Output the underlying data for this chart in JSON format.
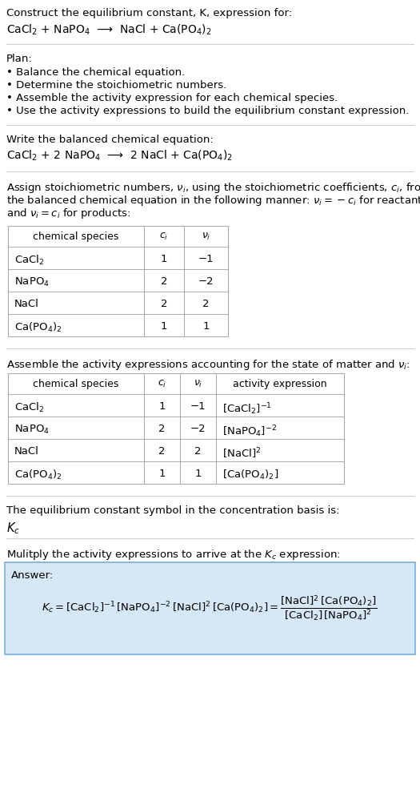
{
  "title_line1": "Construct the equilibrium constant, K, expression for:",
  "title_line2": "CaCl$_2$ + NaPO$_4$  ⟶  NaCl + Ca(PO$_4$)$_2$",
  "plan_header": "Plan:",
  "plan_bullets": [
    "• Balance the chemical equation.",
    "• Determine the stoichiometric numbers.",
    "• Assemble the activity expression for each chemical species.",
    "• Use the activity expressions to build the equilibrium constant expression."
  ],
  "balanced_header": "Write the balanced chemical equation:",
  "balanced_eq": "CaCl$_2$ + 2 NaPO$_4$  ⟶  2 NaCl + Ca(PO$_4$)$_2$",
  "stoich_header_lines": [
    "Assign stoichiometric numbers, $\\nu_i$, using the stoichiometric coefficients, $c_i$, from",
    "the balanced chemical equation in the following manner: $\\nu_i = -c_i$ for reactants",
    "and $\\nu_i = c_i$ for products:"
  ],
  "table1_headers": [
    "chemical species",
    "$c_i$",
    "$\\nu_i$"
  ],
  "table1_rows": [
    [
      "CaCl$_2$",
      "1",
      "−1"
    ],
    [
      "NaPO$_4$",
      "2",
      "−2"
    ],
    [
      "NaCl",
      "2",
      "2"
    ],
    [
      "Ca(PO$_4$)$_2$",
      "1",
      "1"
    ]
  ],
  "activity_header": "Assemble the activity expressions accounting for the state of matter and $\\nu_i$:",
  "table2_headers": [
    "chemical species",
    "$c_i$",
    "$\\nu_i$",
    "activity expression"
  ],
  "table2_rows": [
    [
      "CaCl$_2$",
      "1",
      "−1",
      "[CaCl$_2$]$^{-1}$"
    ],
    [
      "NaPO$_4$",
      "2",
      "−2",
      "[NaPO$_4$]$^{-2}$"
    ],
    [
      "NaCl",
      "2",
      "2",
      "[NaCl]$^2$"
    ],
    [
      "Ca(PO$_4$)$_2$",
      "1",
      "1",
      "[Ca(PO$_4$)$_2$]"
    ]
  ],
  "kc_header": "The equilibrium constant symbol in the concentration basis is:",
  "kc_symbol": "$K_c$",
  "multiply_header": "Mulitply the activity expressions to arrive at the $K_c$ expression:",
  "answer_label": "Answer:",
  "bg_color": "#ffffff",
  "answer_bg_color": "#d6e8f7",
  "answer_border_color": "#7aaed6",
  "table_border_color": "#aaaaaa",
  "text_color": "#000000",
  "font_size": 9.5,
  "line_color": "#cccccc"
}
